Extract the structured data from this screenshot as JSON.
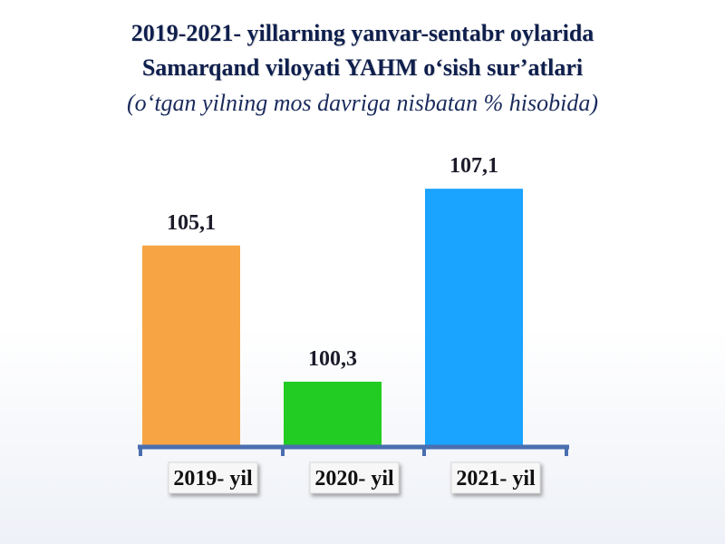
{
  "header": {
    "title_line1": "2019-2021- yillarning yanvar-sentabr oylarida",
    "title_line2": "Samarqand viloyati YAHM o‘sish sur’atlari",
    "subtitle": "(o‘tgan yilning mos davriga nisbatan % hisobida)"
  },
  "chart_data": {
    "type": "bar",
    "title": "2019-2021- yillarning yanvar-sentabr oylarida Samarqand viloyati YAHM o‘sish sur’atlari",
    "subtitle": "(o‘tgan yilning mos davriga nisbatan % hisobida)",
    "categories": [
      "2019- yil",
      "2020- yil",
      "2021- yil"
    ],
    "values": [
      105.1,
      100.3,
      107.1
    ],
    "value_labels": [
      "105,1",
      "100,3",
      "107,1"
    ],
    "colors": [
      "#f7a544",
      "#22cc22",
      "#1aa3ff"
    ],
    "axis_color": "#4a6fb0",
    "xlabel": "",
    "ylabel": "",
    "ylim": [
      98,
      108
    ],
    "grid": false,
    "legend": "none"
  }
}
